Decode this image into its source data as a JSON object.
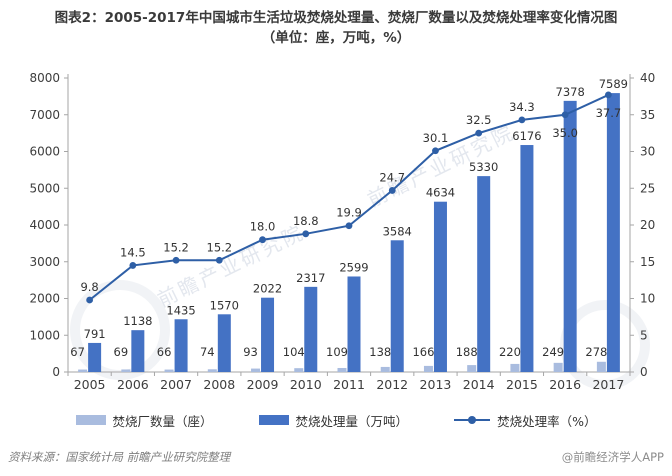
{
  "header": {
    "title_line1": "图表2：2005-2017年中国城市生活垃圾焚烧处理量、焚烧厂数量以及焚烧处理率变化情况图",
    "title_line2": "（单位：座，万吨，%）"
  },
  "chart_data": {
    "type": "bar+line",
    "categories": [
      "2005",
      "2006",
      "2007",
      "2008",
      "2009",
      "2010",
      "2011",
      "2012",
      "2013",
      "2014",
      "2015",
      "2016",
      "2017"
    ],
    "series": [
      {
        "name": "焚烧厂数量（座）",
        "type": "bar",
        "axis": "left",
        "color": "#a9bcdf",
        "values": [
          67,
          69,
          66,
          74,
          93,
          104,
          109,
          138,
          166,
          188,
          220,
          249,
          278
        ]
      },
      {
        "name": "焚烧处理量（万吨）",
        "type": "bar",
        "axis": "left",
        "color": "#4472c4",
        "values": [
          791,
          1138,
          1435,
          1570,
          2022,
          2317,
          2599,
          3584,
          4634,
          5330,
          6176,
          7378,
          7589
        ]
      },
      {
        "name": "焚烧处理率（%）",
        "type": "line",
        "axis": "right",
        "color": "#2e5fa6",
        "values": [
          9.8,
          14.5,
          15.2,
          15.2,
          18.0,
          18.8,
          19.9,
          24.7,
          30.1,
          32.5,
          34.3,
          35.0,
          37.7
        ]
      }
    ],
    "left_axis": {
      "min": 0,
      "max": 8000,
      "step": 1000
    },
    "right_axis": {
      "min": 0,
      "max": 40,
      "step": 5
    },
    "grid": false,
    "legend_position": "bottom",
    "data_labels": true
  },
  "footer": {
    "source": "资料来源：国家统计局  前瞻产业研究院整理",
    "brand": "@前瞻经济学人APP"
  },
  "watermark": {
    "text": "前瞻产业研究院"
  }
}
